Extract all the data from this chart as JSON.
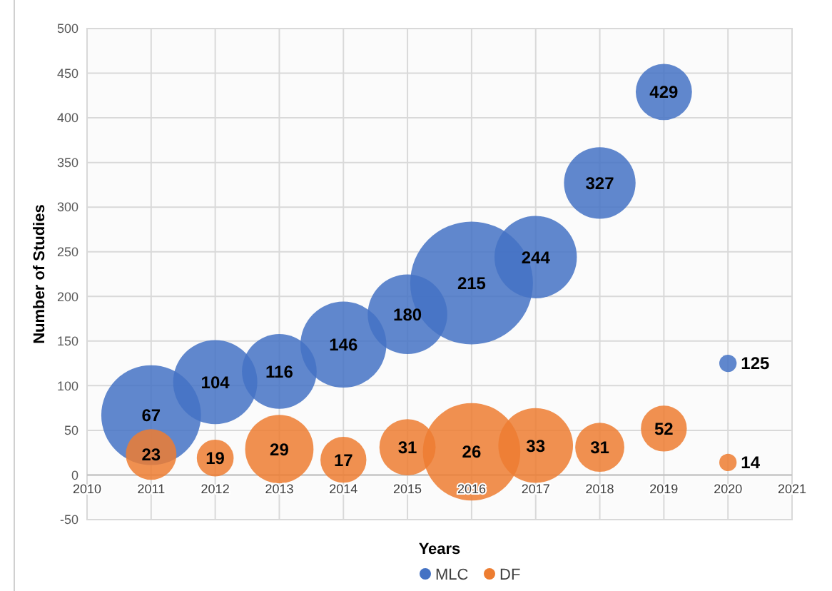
{
  "chart_data": {
    "type": "bubble",
    "xlabel": "Years",
    "ylabel": "Number of Studies",
    "x": [
      2011,
      2012,
      2013,
      2014,
      2015,
      2016,
      2017,
      2018,
      2019,
      2020
    ],
    "series": [
      {
        "name": "MLC",
        "color": "#4472c4",
        "values": [
          67,
          104,
          116,
          146,
          180,
          215,
          244,
          327,
          429,
          125
        ],
        "sizes": [
          0.66,
          0.47,
          0.37,
          0.49,
          0.42,
          1,
          0.45,
          0.34,
          0.21,
          0.02
        ]
      },
      {
        "name": "DF",
        "color": "#ed7d31",
        "values": [
          23,
          19,
          29,
          17,
          31,
          26,
          33,
          31,
          52,
          14
        ],
        "sizes": [
          0.17,
          0.09,
          0.31,
          0.14,
          0.21,
          0.63,
          0.37,
          0.16,
          0.14,
          0.02
        ]
      }
    ],
    "xlim": [
      2010,
      2021
    ],
    "xticks": [
      2010,
      2011,
      2012,
      2013,
      2014,
      2015,
      2016,
      2017,
      2018,
      2019,
      2020,
      2021
    ],
    "ylim": [
      -50,
      500
    ],
    "yticks": [
      -50,
      0,
      50,
      100,
      150,
      200,
      250,
      300,
      350,
      400,
      450,
      500
    ],
    "grid": true,
    "legend": "bottom",
    "data_labels": true
  }
}
